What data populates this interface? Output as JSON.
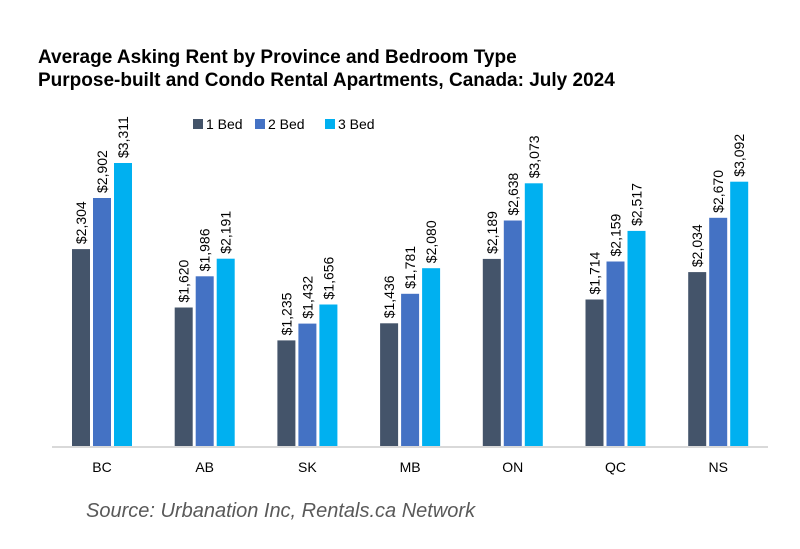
{
  "chart_data": {
    "type": "bar",
    "title": "Average Asking Rent by Province and Bedroom Type",
    "subtitle": "Purpose-built and Condo Rental Apartments, Canada: July 2024",
    "categories": [
      "BC",
      "AB",
      "SK",
      "MB",
      "ON",
      "QC",
      "NS"
    ],
    "series": [
      {
        "name": "1 Bed",
        "color": "#44546a",
        "values": [
          2304,
          1620,
          1235,
          1436,
          2189,
          1714,
          2034
        ],
        "labels": [
          "$2,304",
          "$1,620",
          "$1,235",
          "$1,436",
          "$2,189",
          "$1,714",
          "$2,034"
        ]
      },
      {
        "name": "2 Bed",
        "color": "#4472c4",
        "values": [
          2902,
          1986,
          1432,
          1781,
          2638,
          2159,
          2670
        ],
        "labels": [
          "$2,902",
          "$1,986",
          "$1,432",
          "$1,781",
          "$2,638",
          "$2,159",
          "$2,670"
        ]
      },
      {
        "name": "3 Bed",
        "color": "#00b0f0",
        "values": [
          3311,
          2191,
          1656,
          2080,
          3073,
          2517,
          3092
        ],
        "labels": [
          "$3,311",
          "$2,191",
          "$1,656",
          "$2,080",
          "$3,073",
          "$2,517",
          "$3,092"
        ]
      }
    ],
    "ylim": [
      0,
      3311
    ],
    "legend": "top",
    "grid": false,
    "xlabel": "",
    "ylabel": ""
  },
  "source": "Source: Urbanation Inc, Rentals.ca Network"
}
